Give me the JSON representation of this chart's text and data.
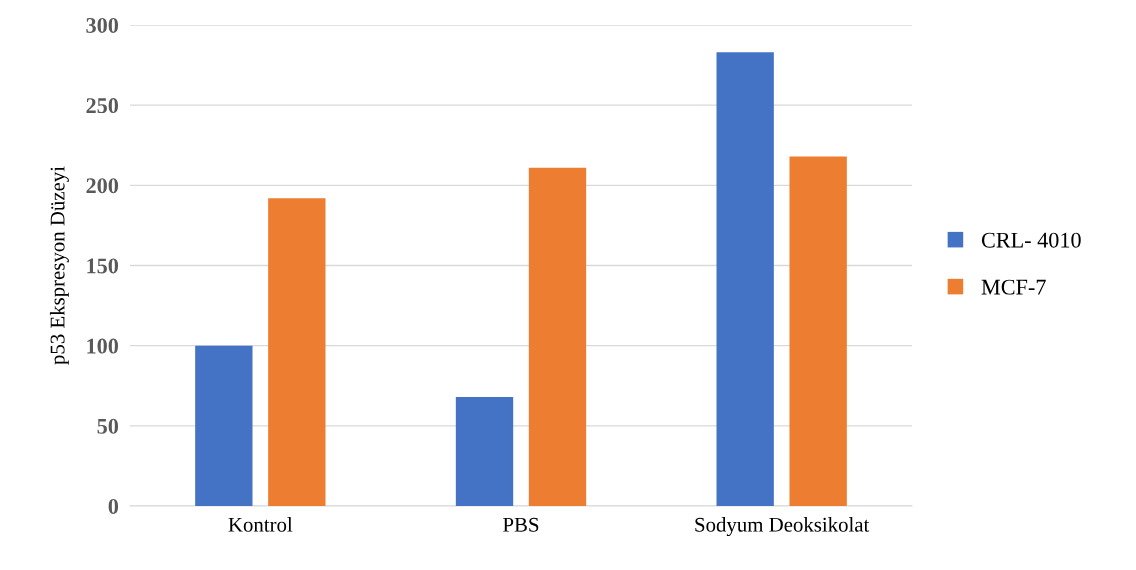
{
  "chart_data": {
    "type": "bar",
    "ylabel": "p53 Ekspresyon Düzeyi",
    "categories": [
      "Kontrol",
      "PBS",
      "Sodyum Deoksikolat"
    ],
    "series": [
      {
        "name": "CRL- 4010",
        "color": "#4472c4",
        "values": [
          100,
          68,
          283
        ]
      },
      {
        "name": "MCF-7",
        "color": "#ed7d31",
        "values": [
          192,
          211,
          218
        ]
      }
    ],
    "ylim": [
      0,
      300
    ],
    "yticks": [
      0,
      50,
      100,
      150,
      200,
      250,
      300
    ],
    "grid": "y",
    "legend": "right"
  }
}
